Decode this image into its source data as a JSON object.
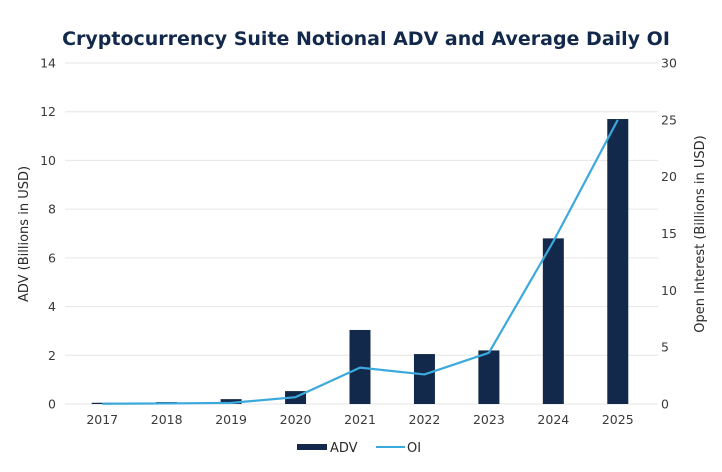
{
  "chart_data": {
    "type": "bar+line",
    "title": "Cryptocurrency Suite Notional ADV and Average Daily OI",
    "categories": [
      "2017",
      "2018",
      "2019",
      "2020",
      "2021",
      "2022",
      "2023",
      "2024",
      "2025"
    ],
    "series": [
      {
        "name": "ADV",
        "type": "bar",
        "axis": "left",
        "color": "#13294b",
        "values": [
          0.05,
          0.08,
          0.2,
          0.53,
          3.04,
          2.05,
          2.2,
          6.8,
          11.7
        ]
      },
      {
        "name": "OI",
        "type": "line",
        "axis": "right",
        "color": "#3ba9dc",
        "values": [
          0.02,
          0.05,
          0.1,
          0.6,
          3.2,
          2.6,
          4.5,
          14.3,
          25.0
        ]
      }
    ],
    "ylabel": "ADV (Billions in USD)",
    "ylabel_right": "Open Interest (Billions in USD)",
    "xlabel": "",
    "ylim": [
      0,
      14
    ],
    "ylim_right": [
      0,
      30
    ],
    "yticks": [
      "0",
      "2",
      "4",
      "6",
      "8",
      "10",
      "12",
      "14"
    ],
    "yticks_right": [
      "0",
      "5",
      "10",
      "15",
      "20",
      "25",
      "30"
    ],
    "grid": true,
    "legend": {
      "position": "bottom-center",
      "entries": [
        "ADV",
        "OI"
      ]
    }
  }
}
